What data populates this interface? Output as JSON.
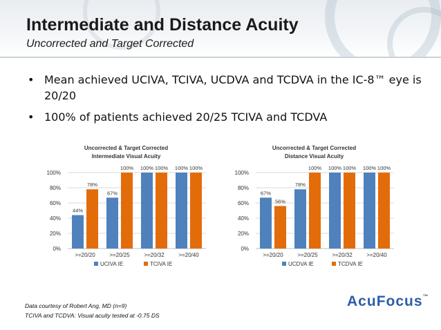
{
  "slide": {
    "title": "Intermediate and Distance Acuity",
    "subtitle": "Uncorrected and Target Corrected",
    "bullets": [
      "Mean achieved UCIVA, TCIVA, UCDVA and TCDVA in the IC-8™ eye is 20/20",
      "100% of patients achieved 20/25 TCIVA and TCDVA"
    ],
    "bullet_glyph": "•",
    "footnotes": [
      "Data courtesy of Robert Ang, MD (n=9)",
      "TCIVA and TCDVA: Visual acuity tested at -0.75 DS"
    ],
    "logo": {
      "part1": "Acu",
      "part2": "Focus",
      "tm": "™"
    }
  },
  "colors": {
    "series1": "#4f81bd",
    "series2": "#e36c0a",
    "grid": "#d9d9d9",
    "text": "#333333"
  },
  "chart_data": [
    {
      "type": "bar",
      "title": [
        "Uncorrected & Target Corrected",
        "Intermediate Visual Acuity"
      ],
      "categories": [
        ">=20/20",
        ">=20/25",
        ">=20/32",
        ">=20/40"
      ],
      "series": [
        {
          "name": "UCIVA IE",
          "values": [
            44,
            67,
            100,
            100
          ]
        },
        {
          "name": "TCIVA IE",
          "values": [
            78,
            100,
            100,
            100
          ]
        }
      ],
      "ylim": [
        0,
        100
      ],
      "yticks": [
        0,
        20,
        40,
        60,
        80,
        100
      ],
      "value_suffix": "%",
      "grid": true,
      "legend": "bottom"
    },
    {
      "type": "bar",
      "title": [
        "Uncorrected & Target Corrected",
        "Distance Visual Acuity"
      ],
      "categories": [
        ">=20/20",
        ">=20/25",
        ">=20/32",
        ">=20/40"
      ],
      "series": [
        {
          "name": "UCDVA IE",
          "values": [
            67,
            78,
            100,
            100
          ]
        },
        {
          "name": "TCDVA IE",
          "values": [
            56,
            100,
            100,
            100
          ]
        }
      ],
      "ylim": [
        0,
        100
      ],
      "yticks": [
        0,
        20,
        40,
        60,
        80,
        100
      ],
      "value_suffix": "%",
      "grid": true,
      "legend": "bottom"
    }
  ]
}
